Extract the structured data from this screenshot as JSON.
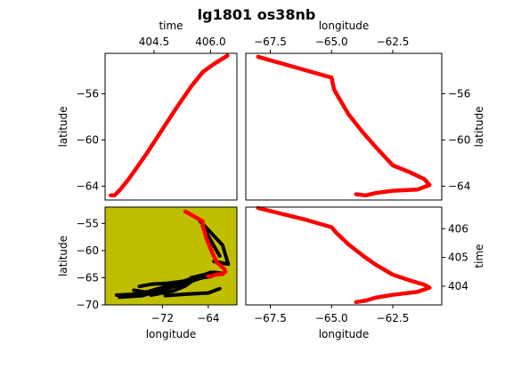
{
  "figure": {
    "title": "lg1801 os38nb"
  },
  "chart_data": [
    {
      "id": "time-lat",
      "type": "scatter",
      "xlabel": "time",
      "ylabel": "latitude",
      "xaxis_position": "top",
      "yaxis_position": "left",
      "xlim": [
        403.2,
        406.7
      ],
      "ylim": [
        -65.2,
        -52.5
      ],
      "xticks": [
        404.5,
        406.0
      ],
      "xtick_labels": [
        "404.5",
        "406.0"
      ],
      "yticks": [
        -56,
        -60,
        -64
      ],
      "ytick_labels": [
        "−56",
        "−60",
        "−64"
      ],
      "series": [
        {
          "color": "#ff0000",
          "x": [
            403.35,
            403.45,
            403.6,
            403.8,
            404.0,
            404.3,
            404.7,
            405.1,
            405.5,
            405.8,
            406.1,
            406.45
          ],
          "y": [
            -64.8,
            -64.8,
            -64.3,
            -63.5,
            -62.6,
            -61.2,
            -59.2,
            -57.2,
            -55.3,
            -54.1,
            -53.4,
            -52.7
          ]
        }
      ]
    },
    {
      "id": "lon-lat",
      "type": "scatter",
      "xlabel": "longitude",
      "ylabel": "latitude",
      "xaxis_position": "top",
      "yaxis_position": "right",
      "xlim": [
        -68.5,
        -60.5
      ],
      "ylim": [
        -65.2,
        -52.5
      ],
      "xticks": [
        -67.5,
        -65.0,
        -62.5
      ],
      "xtick_labels": [
        "−67.5",
        "−65.0",
        "−62.5"
      ],
      "yticks": [
        -56,
        -60,
        -64
      ],
      "ytick_labels": [
        "−56",
        "−60",
        "−64"
      ],
      "series": [
        {
          "color": "#ff0000",
          "x": [
            -68.0,
            -66.0,
            -65.0,
            -64.9,
            -64.8,
            -64.3,
            -63.7,
            -63.2,
            -62.5,
            -61.8,
            -61.2,
            -61.0,
            -61.5,
            -62.5,
            -63.2,
            -63.6,
            -64.0
          ],
          "y": [
            -52.8,
            -54.0,
            -54.6,
            -55.6,
            -56.0,
            -57.8,
            -59.4,
            -60.6,
            -62.2,
            -62.8,
            -63.4,
            -63.9,
            -64.3,
            -64.4,
            -64.6,
            -64.8,
            -64.7
          ]
        }
      ]
    },
    {
      "id": "map",
      "type": "scatter",
      "xlabel": "longitude",
      "ylabel": "latitude",
      "xaxis_position": "bottom",
      "yaxis_position": "left",
      "background": "#bfbf00",
      "land_color": "#000000",
      "xlim": [
        -82,
        -59
      ],
      "ylim": [
        -70,
        -52
      ],
      "xticks": [
        -72,
        -64
      ],
      "xtick_labels": [
        "−72",
        "−64"
      ],
      "yticks": [
        -55,
        -60,
        -65,
        -70
      ],
      "ytick_labels": [
        "−55",
        "−60",
        "−65",
        "−70"
      ],
      "land": [
        {
          "x": [
            -65.5,
            -61.5,
            -60.5,
            -63.0
          ],
          "y": [
            -54.5,
            -59.0,
            -62.5,
            -62.0
          ]
        },
        {
          "x": [
            -65.0,
            -62.0
          ],
          "y": [
            -55.5,
            -61.0
          ]
        },
        {
          "x": [
            -80.0,
            -76.0,
            -72.0,
            -69.0,
            -66.0,
            -63.5
          ],
          "y": [
            -68.2,
            -68.0,
            -66.8,
            -66.0,
            -65.0,
            -64.0
          ]
        },
        {
          "x": [
            -79.5,
            -75.5,
            -72.0,
            -68.5,
            -66.0,
            -63.0
          ],
          "y": [
            -68.6,
            -68.3,
            -67.2,
            -66.2,
            -65.3,
            -64.2
          ]
        },
        {
          "x": [
            -77.0,
            -73.0,
            -70.0,
            -67.0
          ],
          "y": [
            -67.3,
            -68.0,
            -66.2,
            -65.2
          ]
        },
        {
          "x": [
            -74.0,
            -70.0,
            -68.0,
            -66.0
          ],
          "y": [
            -68.2,
            -67.4,
            -66.5,
            -65.0
          ]
        },
        {
          "x": [
            -76.0,
            -74.0,
            -71.0,
            -68.0,
            -65.0,
            -63.5
          ],
          "y": [
            -66.6,
            -66.2,
            -66.0,
            -65.6,
            -65.0,
            -64.8
          ]
        },
        {
          "x": [
            -73.0,
            -71.0,
            -68.0
          ],
          "y": [
            -67.8,
            -66.5,
            -66.4
          ]
        },
        {
          "x": [
            -71.5,
            -67.5,
            -64.0,
            -62.0
          ],
          "y": [
            -68.3,
            -68.0,
            -67.8,
            -67.0
          ]
        },
        {
          "x": [
            -67.0,
            -65.0,
            -63.0,
            -61.5
          ],
          "y": [
            -65.0,
            -64.5,
            -64.0,
            -64.2
          ]
        }
      ],
      "series": [
        {
          "color": "#ff0000",
          "x": [
            -68.0,
            -66.0,
            -65.0,
            -64.9,
            -64.8,
            -64.3,
            -63.7,
            -63.2,
            -62.5,
            -61.8,
            -61.2,
            -61.0,
            -61.5,
            -62.5,
            -63.2,
            -63.6,
            -64.0
          ],
          "y": [
            -52.8,
            -54.0,
            -54.6,
            -55.6,
            -56.0,
            -57.8,
            -59.4,
            -60.6,
            -62.2,
            -62.8,
            -63.4,
            -63.9,
            -64.3,
            -64.4,
            -64.6,
            -64.8,
            -64.7
          ]
        }
      ]
    },
    {
      "id": "lon-time",
      "type": "scatter",
      "xlabel": "longitude",
      "ylabel": "time",
      "xaxis_position": "bottom",
      "yaxis_position": "right",
      "xlim": [
        -68.5,
        -60.5
      ],
      "ylim": [
        403.35,
        406.75
      ],
      "xticks": [
        -67.5,
        -65.0,
        -62.5
      ],
      "xtick_labels": [
        "−67.5",
        "−65.0",
        "−62.5"
      ],
      "yticks": [
        406,
        405,
        404
      ],
      "ytick_labels": [
        "406",
        "405",
        "404"
      ],
      "series": [
        {
          "color": "#ff0000",
          "x": [
            -68.0,
            -66.0,
            -65.0,
            -64.9,
            -64.8,
            -64.3,
            -63.7,
            -63.2,
            -62.5,
            -61.8,
            -61.2,
            -61.0,
            -61.5,
            -62.5,
            -63.2,
            -63.6,
            -64.0
          ],
          "y": [
            406.72,
            406.3,
            406.05,
            405.95,
            405.85,
            405.45,
            405.05,
            404.75,
            404.4,
            404.2,
            404.05,
            403.95,
            403.8,
            403.7,
            403.6,
            403.5,
            403.45
          ]
        }
      ]
    }
  ]
}
